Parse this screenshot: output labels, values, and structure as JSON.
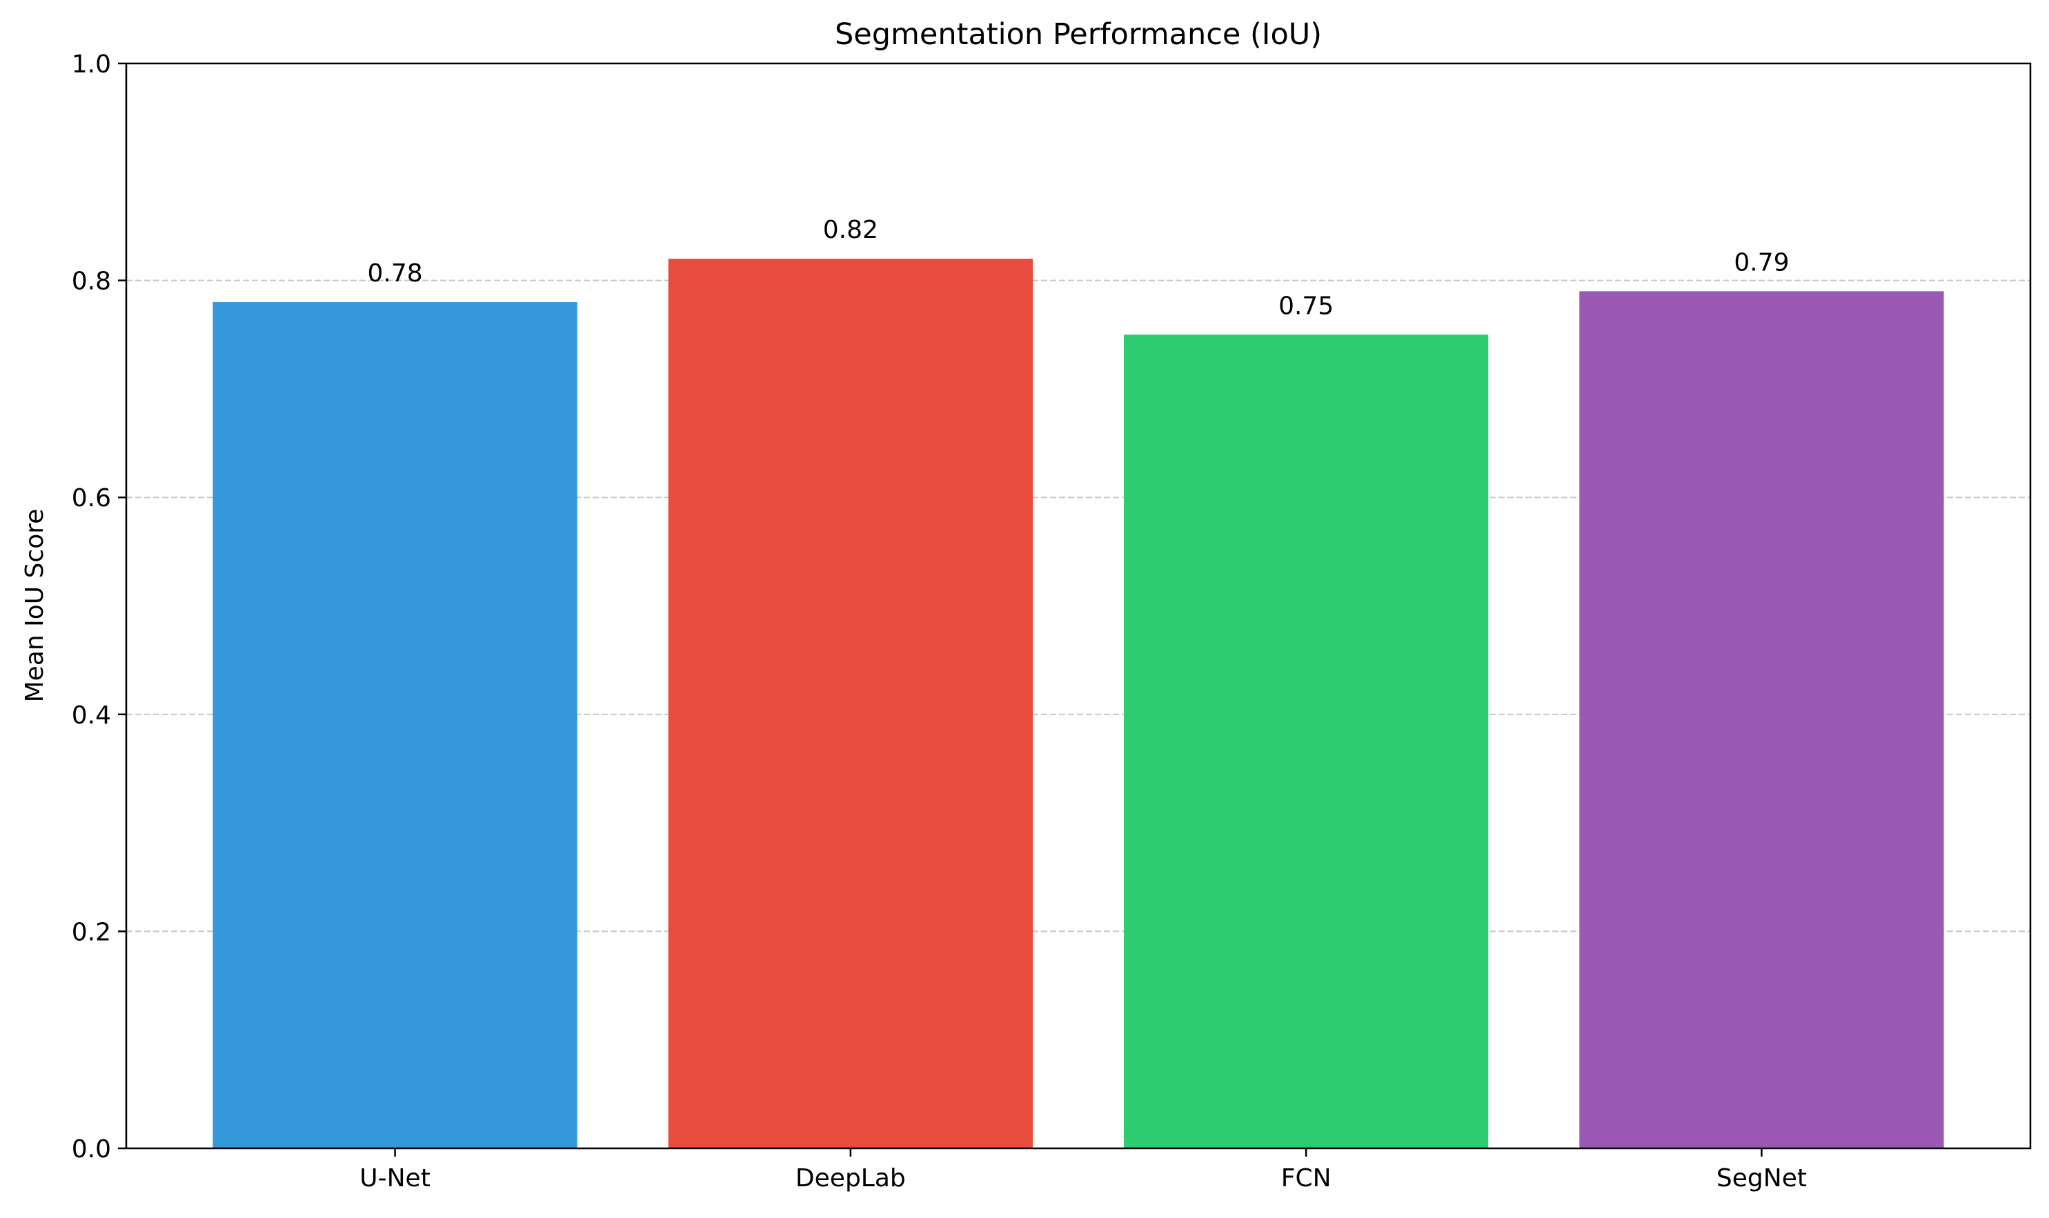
{
  "chart_data": {
    "type": "bar",
    "title": "Segmentation Performance (IoU)",
    "xlabel": "",
    "ylabel": "Mean IoU Score",
    "categories": [
      "U-Net",
      "DeepLab",
      "FCN",
      "SegNet"
    ],
    "values": [
      0.78,
      0.82,
      0.75,
      0.79
    ],
    "value_labels": [
      "0.78",
      "0.82",
      "0.75",
      "0.79"
    ],
    "colors": [
      "#3498db",
      "#e74c3c",
      "#2ecc71",
      "#9b59b6"
    ],
    "ylim": [
      0,
      1.0
    ],
    "yticks": [
      0.0,
      0.2,
      0.4,
      0.6,
      0.8,
      1.0
    ],
    "ytick_labels": [
      "0.0",
      "0.2",
      "0.4",
      "0.6",
      "0.8",
      "1.0"
    ],
    "grid": "y-axis dashed",
    "legend": "none"
  }
}
